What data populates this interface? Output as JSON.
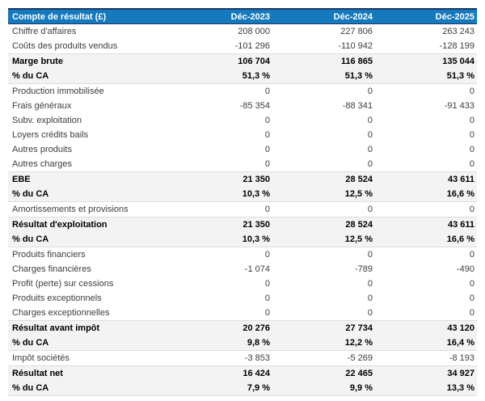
{
  "colors": {
    "header_bg": "#1479BD",
    "header_border": "#1F3864",
    "band_bg": "#F3F3F3",
    "band_border": "#DEDEDE",
    "text_regular": "#3D3D3D",
    "text_emphasis": "#000000"
  },
  "chart_data": {
    "type": "table",
    "title": "Compte de résultat (£)",
    "columns": [
      "Déc-2023",
      "Déc-2024",
      "Déc-2025"
    ],
    "rows": [
      {
        "label": "Chiffre d'affaires",
        "values": [
          "208 000",
          "227 806",
          "263 243"
        ],
        "emphasis": false
      },
      {
        "label": "Coûts des produits vendus",
        "values": [
          "-101 296",
          "-110 942",
          "-128 199"
        ],
        "emphasis": false
      },
      {
        "label": "Marge brute",
        "values": [
          "106 704",
          "116 865",
          "135 044"
        ],
        "emphasis": true
      },
      {
        "label": "% du CA",
        "values": [
          "51,3 %",
          "51,3 %",
          "51,3 %"
        ],
        "emphasis": true
      },
      {
        "label": "Production immobilisée",
        "values": [
          "0",
          "0",
          "0"
        ],
        "emphasis": false
      },
      {
        "label": "Frais généraux",
        "values": [
          "-85 354",
          "-88 341",
          "-91 433"
        ],
        "emphasis": false
      },
      {
        "label": "Subv. exploitation",
        "values": [
          "0",
          "0",
          "0"
        ],
        "emphasis": false
      },
      {
        "label": "Loyers crédits bails",
        "values": [
          "0",
          "0",
          "0"
        ],
        "emphasis": false
      },
      {
        "label": "Autres produits",
        "values": [
          "0",
          "0",
          "0"
        ],
        "emphasis": false
      },
      {
        "label": "Autres charges",
        "values": [
          "0",
          "0",
          "0"
        ],
        "emphasis": false
      },
      {
        "label": "EBE",
        "values": [
          "21 350",
          "28 524",
          "43 611"
        ],
        "emphasis": true
      },
      {
        "label": "% du CA",
        "values": [
          "10,3 %",
          "12,5 %",
          "16,6 %"
        ],
        "emphasis": true
      },
      {
        "label": "Amortissements et provisions",
        "values": [
          "0",
          "0",
          "0"
        ],
        "emphasis": false
      },
      {
        "label": "Résultat d'exploitation",
        "values": [
          "21 350",
          "28 524",
          "43 611"
        ],
        "emphasis": true
      },
      {
        "label": "% du CA",
        "values": [
          "10,3 %",
          "12,5 %",
          "16,6 %"
        ],
        "emphasis": true
      },
      {
        "label": "Produits financiers",
        "values": [
          "0",
          "0",
          "0"
        ],
        "emphasis": false
      },
      {
        "label": "Charges financières",
        "values": [
          "-1 074",
          "-789",
          "-490"
        ],
        "emphasis": false
      },
      {
        "label": "Profit (perte) sur cessions",
        "values": [
          "0",
          "0",
          "0"
        ],
        "emphasis": false
      },
      {
        "label": "Produits exceptionnels",
        "values": [
          "0",
          "0",
          "0"
        ],
        "emphasis": false
      },
      {
        "label": "Charges exceptionnelles",
        "values": [
          "0",
          "0",
          "0"
        ],
        "emphasis": false
      },
      {
        "label": "Résultat avant impôt",
        "values": [
          "20 276",
          "27 734",
          "43 120"
        ],
        "emphasis": true
      },
      {
        "label": "% du CA",
        "values": [
          "9,8 %",
          "12,2 %",
          "16,4 %"
        ],
        "emphasis": true
      },
      {
        "label": "Impôt sociétés",
        "values": [
          "-3 853",
          "-5 269",
          "-8 193"
        ],
        "emphasis": false
      },
      {
        "label": "Résultat net",
        "values": [
          "16 424",
          "22 465",
          "34 927"
        ],
        "emphasis": true
      },
      {
        "label": "% du CA",
        "values": [
          "7,9 %",
          "9,9 %",
          "13,3 %"
        ],
        "emphasis": true
      }
    ]
  }
}
